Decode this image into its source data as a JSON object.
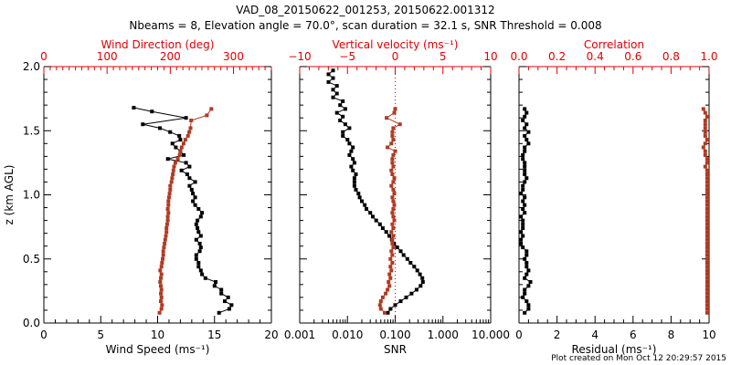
{
  "header": {
    "title_line1": "VAD_08_20150622_001253, 20150622.001312",
    "title_line2": "Nbeams = 8, Elevation angle = 70.0°, scan duration = 32.1 s, SNR Threshold = 0.008"
  },
  "footer": {
    "created": "Plot created on Mon Oct 12 20:29:57 2015"
  },
  "colors": {
    "black_series": "#000000",
    "red_series": "#b03a22",
    "axis_red": "#e00000"
  },
  "chart_data": [
    {
      "type": "line",
      "panel": "wind",
      "ylabel": "z (km AGL)",
      "ylim": [
        0.0,
        2.0
      ],
      "yticks": [
        "0.0",
        "0.5",
        "1.0",
        "1.5",
        "2.0"
      ],
      "xlabel_bottom": "Wind Speed (ms⁻¹)",
      "xlim_bottom": [
        0,
        20
      ],
      "xticks_bottom": [
        "0",
        "5",
        "10",
        "15",
        "20"
      ],
      "xlabel_top": "Wind Direction (deg)",
      "xlim_top": [
        0,
        360
      ],
      "xticks_top": [
        "0",
        "100",
        "200",
        "300"
      ],
      "series": [
        {
          "name": "Wind Speed",
          "axis": "bottom",
          "color": "#000000",
          "z": [
            0.08,
            0.11,
            0.14,
            0.17,
            0.2,
            0.23,
            0.26,
            0.29,
            0.32,
            0.35,
            0.38,
            0.41,
            0.44,
            0.47,
            0.5,
            0.53,
            0.56,
            0.59,
            0.62,
            0.65,
            0.68,
            0.71,
            0.74,
            0.77,
            0.8,
            0.83,
            0.86,
            0.89,
            0.92,
            0.95,
            0.98,
            1.01,
            1.04,
            1.07,
            1.1,
            1.13,
            1.16,
            1.19,
            1.22,
            1.25,
            1.28,
            1.31,
            1.34,
            1.37,
            1.4,
            1.43,
            1.46,
            1.49,
            1.52,
            1.55,
            1.6,
            1.65,
            1.68
          ],
          "values": [
            15.4,
            16.3,
            16.5,
            15.9,
            16.2,
            15.6,
            15.6,
            15.0,
            15.1,
            14.2,
            13.9,
            13.8,
            13.6,
            13.6,
            13.4,
            13.4,
            13.7,
            13.8,
            13.7,
            13.4,
            13.8,
            13.6,
            13.5,
            13.4,
            13.5,
            13.8,
            13.9,
            13.6,
            13.3,
            13.1,
            13.3,
            13.1,
            13.0,
            12.8,
            13.3,
            12.8,
            12.6,
            12.1,
            12.8,
            12.5,
            10.9,
            12.3,
            12.0,
            11.6,
            11.3,
            12.0,
            11.9,
            11.1,
            10.2,
            8.7,
            12.5,
            9.5,
            7.9
          ]
        },
        {
          "name": "Wind Direction",
          "axis": "top",
          "color": "#b03a22",
          "z": [
            0.08,
            0.11,
            0.14,
            0.17,
            0.2,
            0.23,
            0.26,
            0.29,
            0.32,
            0.35,
            0.38,
            0.41,
            0.44,
            0.47,
            0.5,
            0.53,
            0.56,
            0.59,
            0.62,
            0.65,
            0.68,
            0.71,
            0.74,
            0.77,
            0.8,
            0.83,
            0.86,
            0.89,
            0.92,
            0.95,
            0.98,
            1.01,
            1.04,
            1.07,
            1.1,
            1.13,
            1.16,
            1.19,
            1.22,
            1.25,
            1.28,
            1.31,
            1.34,
            1.37,
            1.4,
            1.43,
            1.46,
            1.49,
            1.52,
            1.58,
            1.62,
            1.67
          ],
          "values": [
            183,
            186,
            187,
            185,
            186,
            185,
            186,
            185,
            184,
            185,
            186,
            184,
            186,
            187,
            188,
            189,
            189,
            190,
            191,
            192,
            193,
            194,
            194,
            195,
            196,
            196,
            197,
            196,
            197,
            197,
            198,
            199,
            200,
            200,
            202,
            203,
            204,
            205,
            206,
            208,
            212,
            215,
            216,
            218,
            221,
            224,
            228,
            230,
            232,
            233,
            258,
            265
          ]
        }
      ]
    },
    {
      "type": "line",
      "panel": "snr-w",
      "ylim": [
        0.0,
        2.0
      ],
      "xlabel_bottom": "SNR",
      "xscale_bottom": "log",
      "xlim_bottom": [
        0.001,
        10.0
      ],
      "xticks_bottom": [
        "0.001",
        "0.010",
        "0.100",
        "1.000",
        "10.000"
      ],
      "xlabel_top": "Vertical velocity (ms⁻¹)",
      "xlim_top": [
        -10,
        10
      ],
      "xticks_top": [
        "−10",
        "−5",
        "0",
        "5",
        "10"
      ],
      "reference_line": {
        "axis": "top",
        "value": 0,
        "style": "dotted",
        "color": "#e00000"
      },
      "series": [
        {
          "name": "SNR",
          "axis": "bottom",
          "color": "#000000",
          "z": [
            0.08,
            0.11,
            0.14,
            0.17,
            0.2,
            0.23,
            0.26,
            0.29,
            0.32,
            0.35,
            0.38,
            0.41,
            0.44,
            0.47,
            0.5,
            0.53,
            0.56,
            0.59,
            0.62,
            0.65,
            0.68,
            0.71,
            0.74,
            0.77,
            0.8,
            0.83,
            0.86,
            0.89,
            0.92,
            0.95,
            0.98,
            1.01,
            1.04,
            1.07,
            1.1,
            1.13,
            1.16,
            1.19,
            1.22,
            1.25,
            1.28,
            1.31,
            1.34,
            1.37,
            1.4,
            1.43,
            1.46,
            1.49,
            1.52,
            1.55,
            1.58,
            1.61,
            1.64,
            1.67,
            1.7,
            1.73,
            1.76,
            1.79,
            1.82,
            1.85,
            1.88,
            1.91,
            1.94,
            1.97
          ],
          "values": [
            0.07,
            0.08,
            0.1,
            0.13,
            0.17,
            0.22,
            0.28,
            0.34,
            0.38,
            0.37,
            0.33,
            0.29,
            0.25,
            0.21,
            0.18,
            0.15,
            0.13,
            0.11,
            0.095,
            0.085,
            0.075,
            0.065,
            0.055,
            0.048,
            0.04,
            0.034,
            0.03,
            0.025,
            0.023,
            0.02,
            0.018,
            0.017,
            0.015,
            0.014,
            0.014,
            0.014,
            0.015,
            0.013,
            0.012,
            0.014,
            0.013,
            0.011,
            0.012,
            0.013,
            0.011,
            0.01,
            0.008,
            0.008,
            0.011,
            0.009,
            0.007,
            0.008,
            0.006,
            0.009,
            0.007,
            0.008,
            0.005,
            0.006,
            0.005,
            0.006,
            0.004,
            0.005,
            0.004,
            0.005
          ]
        },
        {
          "name": "Vertical velocity",
          "axis": "top",
          "color": "#b03a22",
          "z": [
            0.08,
            0.11,
            0.14,
            0.17,
            0.2,
            0.23,
            0.26,
            0.29,
            0.32,
            0.35,
            0.38,
            0.41,
            0.44,
            0.47,
            0.5,
            0.53,
            0.56,
            0.59,
            0.62,
            0.65,
            0.68,
            0.71,
            0.74,
            0.77,
            0.8,
            0.83,
            0.86,
            0.89,
            0.92,
            0.95,
            0.98,
            1.01,
            1.04,
            1.07,
            1.1,
            1.13,
            1.16,
            1.19,
            1.22,
            1.25,
            1.28,
            1.31,
            1.34,
            1.37,
            1.4,
            1.43,
            1.46,
            1.49,
            1.52,
            1.55,
            1.6,
            1.64,
            1.67
          ],
          "values": [
            -1.1,
            -1.5,
            -1.6,
            -1.5,
            -1.3,
            -1.0,
            -0.8,
            -0.6,
            -0.7,
            -0.5,
            -0.6,
            -0.4,
            -0.5,
            -0.3,
            -0.5,
            -0.3,
            -0.4,
            -0.2,
            -0.3,
            -0.3,
            -0.2,
            -0.4,
            -0.2,
            -0.3,
            -0.1,
            -0.2,
            -0.3,
            -0.2,
            -0.1,
            -0.2,
            -0.3,
            -0.1,
            -0.2,
            -0.4,
            -0.2,
            -0.1,
            -0.3,
            -0.4,
            -0.2,
            -0.3,
            -0.3,
            -0.2,
            0.0,
            -0.8,
            -0.4,
            -0.2,
            -0.3,
            -0.3,
            -0.2,
            0.5,
            -0.9,
            -0.1,
            0.0
          ]
        }
      ]
    },
    {
      "type": "line",
      "panel": "residual-correlation",
      "ylim": [
        0.0,
        2.0
      ],
      "xlabel_bottom": "Residual (ms⁻¹)",
      "xlim_bottom": [
        0,
        10
      ],
      "xticks_bottom": [
        "0",
        "2",
        "4",
        "6",
        "8",
        "10"
      ],
      "xlabel_top": "Correlation",
      "xlim_top": [
        0.0,
        1.0
      ],
      "xticks_top": [
        "0.0",
        "0.2",
        "0.4",
        "0.6",
        "0.8",
        "1.0"
      ],
      "series": [
        {
          "name": "Residual",
          "axis": "bottom",
          "color": "#000000",
          "z": [
            0.08,
            0.11,
            0.14,
            0.17,
            0.2,
            0.23,
            0.26,
            0.29,
            0.32,
            0.35,
            0.38,
            0.41,
            0.44,
            0.47,
            0.5,
            0.53,
            0.56,
            0.59,
            0.62,
            0.65,
            0.68,
            0.71,
            0.74,
            0.77,
            0.8,
            0.83,
            0.86,
            0.89,
            0.92,
            0.95,
            0.98,
            1.01,
            1.04,
            1.07,
            1.1,
            1.13,
            1.16,
            1.19,
            1.22,
            1.25,
            1.28,
            1.31,
            1.34,
            1.37,
            1.4,
            1.43,
            1.46,
            1.49,
            1.52,
            1.55,
            1.58,
            1.61,
            1.64,
            1.67
          ],
          "values": [
            0.3,
            0.5,
            0.5,
            0.4,
            0.2,
            0.3,
            0.3,
            0.5,
            0.6,
            0.3,
            0.4,
            0.5,
            0.4,
            0.4,
            0.3,
            0.4,
            0.4,
            0.2,
            0.1,
            0.1,
            0.2,
            0.1,
            0.2,
            0.2,
            0.2,
            0.1,
            0.3,
            0.2,
            0.3,
            0.2,
            0.3,
            0.1,
            0.2,
            0.2,
            0.3,
            0.4,
            0.3,
            0.3,
            0.3,
            0.3,
            0.2,
            0.2,
            0.3,
            0.3,
            0.5,
            0.4,
            0.3,
            0.5,
            0.3,
            0.4,
            0.2,
            0.3,
            0.4,
            0.3
          ]
        },
        {
          "name": "Correlation",
          "axis": "top",
          "color": "#b03a22",
          "z": [
            0.08,
            0.11,
            0.14,
            0.17,
            0.2,
            0.23,
            0.26,
            0.29,
            0.32,
            0.35,
            0.38,
            0.41,
            0.44,
            0.47,
            0.5,
            0.53,
            0.56,
            0.59,
            0.62,
            0.65,
            0.68,
            0.71,
            0.74,
            0.77,
            0.8,
            0.83,
            0.86,
            0.89,
            0.92,
            0.95,
            0.98,
            1.01,
            1.04,
            1.07,
            1.1,
            1.13,
            1.16,
            1.19,
            1.22,
            1.25,
            1.28,
            1.31,
            1.34,
            1.37,
            1.4,
            1.43,
            1.46,
            1.49,
            1.52,
            1.55,
            1.58,
            1.61,
            1.64,
            1.67
          ],
          "values": [
            0.99,
            0.99,
            0.99,
            0.99,
            0.99,
            0.99,
            0.99,
            0.99,
            0.99,
            0.99,
            0.99,
            0.99,
            0.99,
            0.99,
            0.99,
            0.99,
            0.99,
            0.99,
            0.99,
            0.99,
            0.99,
            0.99,
            0.99,
            0.99,
            0.99,
            0.99,
            0.99,
            0.99,
            0.99,
            0.99,
            0.99,
            0.99,
            0.99,
            0.99,
            0.99,
            0.99,
            0.99,
            0.99,
            0.98,
            0.99,
            0.99,
            0.98,
            0.98,
            0.97,
            0.98,
            0.99,
            0.98,
            0.98,
            0.98,
            0.98,
            0.98,
            0.99,
            0.98,
            0.97
          ]
        }
      ]
    }
  ]
}
